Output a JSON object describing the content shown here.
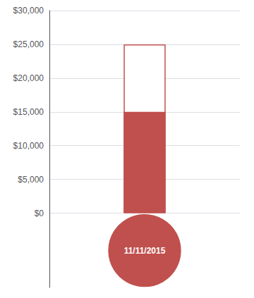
{
  "chart_data": {
    "type": "thermometer",
    "values": [
      15000
    ],
    "target": 25000,
    "color": "#C0504D",
    "annotation": "11/11/2015",
    "ylim": [
      -11000,
      30000
    ],
    "yticks": [
      {
        "value": 0,
        "label": "$0"
      },
      {
        "value": 5000,
        "label": "$5,000"
      },
      {
        "value": 10000,
        "label": "$10,000"
      },
      {
        "value": 15000,
        "label": "$15,000"
      },
      {
        "value": 20000,
        "label": "$20,000"
      },
      {
        "value": 25000,
        "label": "$25,000"
      },
      {
        "value": 30000,
        "label": "$30,000"
      }
    ],
    "grid": true,
    "tick_labels": "y"
  }
}
